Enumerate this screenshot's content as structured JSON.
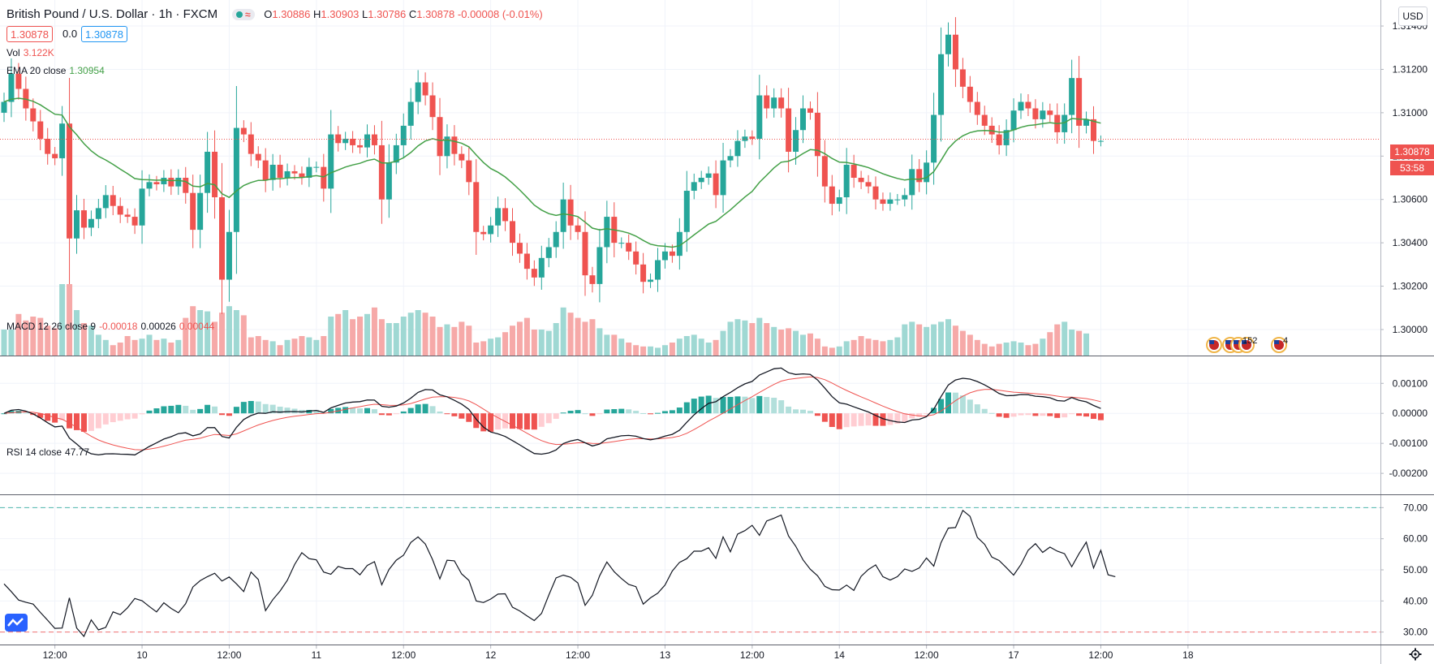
{
  "header": {
    "symbol": "British Pound / U.S. Dollar · 1h · FXCM",
    "open_label": "O",
    "open": "1.30886",
    "high_label": "H",
    "high": "1.30903",
    "low_label": "L",
    "low": "1.30786",
    "close_label": "C",
    "close": "1.30878",
    "change": "-0.00008 (-0.01%)",
    "bid": "1.30878",
    "spread": "0.0",
    "ask": "1.30878",
    "currency": "USD"
  },
  "indicators": {
    "vol_label": "Vol",
    "vol_value": "3.122K",
    "ema_label": "EMA 20 close",
    "ema_value": "1.30954",
    "macd_label": "MACD 12 26 close 9",
    "macd_hist": "-0.00018",
    "macd_line": "0.00026",
    "macd_signal": "0.00044",
    "rsi_label": "RSI 14 close",
    "rsi_value": "47.77"
  },
  "last_price": {
    "price": "1.30878",
    "countdown": "53:58"
  },
  "events": {
    "count_a": "152",
    "count_b": "4"
  },
  "colors": {
    "up": "#26a69a",
    "down": "#ef5350",
    "ema": "#43a047",
    "macd": "#131722",
    "signal": "#ef5350"
  },
  "chart_data": [
    {
      "type": "candlestick",
      "title": "British Pound / U.S. Dollar · 1h · FXCM",
      "x_tick_labels": [
        "12:00",
        "10",
        "12:00",
        "11",
        "12:00",
        "12",
        "12:00",
        "13",
        "12:00",
        "14",
        "12:00",
        "17",
        "12:00",
        "18"
      ],
      "y_ticks": [
        "1.31400",
        "1.31200",
        "1.31000",
        "1.30800",
        "1.30600",
        "1.30400",
        "1.30200",
        "1.30000"
      ],
      "ylim": [
        1.2988,
        1.3152
      ],
      "closes": [
        1.3105,
        1.3118,
        1.3111,
        1.3102,
        1.3096,
        1.3088,
        1.3081,
        1.3079,
        1.3095,
        1.3042,
        1.3055,
        1.3047,
        1.3051,
        1.3056,
        1.3062,
        1.3057,
        1.3053,
        1.3052,
        1.3048,
        1.3065,
        1.3068,
        1.3067,
        1.307,
        1.3066,
        1.307,
        1.3063,
        1.3046,
        1.3063,
        1.3082,
        1.3061,
        1.3023,
        1.3045,
        1.3093,
        1.309,
        1.3081,
        1.3078,
        1.3069,
        1.3076,
        1.307,
        1.3073,
        1.3072,
        1.307,
        1.3075,
        1.3075,
        1.3065,
        1.309,
        1.3086,
        1.3088,
        1.3085,
        1.3084,
        1.309,
        1.3085,
        1.306,
        1.3077,
        1.3085,
        1.3094,
        1.3105,
        1.3114,
        1.3108,
        1.3098,
        1.308,
        1.3089,
        1.3081,
        1.3078,
        1.3068,
        1.3045,
        1.3044,
        1.3048,
        1.3056,
        1.305,
        1.304,
        1.3035,
        1.3028,
        1.3024,
        1.3033,
        1.3038,
        1.3045,
        1.306,
        1.3048,
        1.3045,
        1.3025,
        1.3021,
        1.3038,
        1.3052,
        1.304,
        1.304,
        1.3036,
        1.303,
        1.3022,
        1.3023,
        1.3032,
        1.3036,
        1.3034,
        1.3045,
        1.3064,
        1.3068,
        1.307,
        1.3072,
        1.3062,
        1.3078,
        1.308,
        1.3087,
        1.3089,
        1.3088,
        1.3108,
        1.3102,
        1.3107,
        1.3102,
        1.3082,
        1.3092,
        1.3102,
        1.31,
        1.308,
        1.3066,
        1.3058,
        1.3061,
        1.3076,
        1.307,
        1.3068,
        1.3066,
        1.306,
        1.3058,
        1.306,
        1.306,
        1.3062,
        1.3074,
        1.3068,
        1.3077,
        1.3099,
        1.3127,
        1.3136,
        1.312,
        1.3112,
        1.3105,
        1.3099,
        1.3094,
        1.309,
        1.3085,
        1.3092,
        1.3101,
        1.3105,
        1.3102,
        1.3097,
        1.3101,
        1.3099,
        1.3091,
        1.3099,
        1.3116,
        1.3094,
        1.3097,
        1.3087,
        1.3087
      ]
    },
    {
      "type": "bar",
      "title": "Vol",
      "values": [
        2.0,
        2.0,
        3.2,
        2.7,
        3.0,
        2.9,
        2.3,
        2.1,
        5.5,
        5.5,
        3.5,
        2.5,
        2.3,
        1.6,
        1.2,
        0.8,
        1.0,
        1.5,
        1.2,
        1.3,
        1.6,
        1.2,
        1.3,
        1.0,
        1.2,
        2.9,
        3.8,
        3.5,
        3.4,
        2.6,
        3.3,
        3.8,
        3.5,
        3.1,
        1.4,
        1.5,
        1.2,
        1.1,
        0.8,
        1.2,
        1.3,
        1.5,
        1.4,
        1.2,
        1.5,
        3.0,
        3.2,
        3.5,
        2.8,
        3.0,
        3.2,
        3.7,
        2.8,
        2.5,
        2.5,
        3.0,
        3.3,
        3.5,
        3.3,
        3.0,
        2.2,
        2.4,
        2.2,
        2.6,
        2.3,
        1.0,
        1.1,
        1.3,
        1.4,
        1.8,
        2.3,
        2.6,
        2.9,
        2.0,
        2.0,
        1.9,
        2.5,
        3.7,
        3.3,
        2.9,
        2.6,
        2.8,
        2.1,
        1.6,
        1.6,
        1.3,
        1.0,
        0.8,
        0.7,
        0.7,
        0.6,
        0.8,
        1.0,
        1.3,
        1.5,
        1.6,
        1.3,
        1.0,
        1.2,
        1.9,
        2.6,
        2.8,
        2.7,
        2.5,
        2.9,
        2.5,
        2.2,
        2.0,
        2.1,
        1.9,
        1.6,
        1.7,
        1.3,
        0.7,
        0.6,
        0.7,
        1.1,
        1.2,
        1.5,
        1.3,
        1.2,
        1.1,
        1.2,
        1.4,
        2.4,
        2.6,
        2.4,
        2.2,
        2.4,
        2.6,
        2.8,
        2.3,
        1.9,
        1.6,
        1.2,
        0.9,
        0.7,
        0.9,
        1.0,
        1.1,
        1.0,
        0.8,
        0.9,
        1.3,
        1.8,
        2.4,
        2.6,
        2.0,
        1.9,
        1.7
      ]
    },
    {
      "type": "line",
      "title": "MACD 12 26 close 9",
      "y_ticks": [
        "0.00100",
        "0.00000",
        "-0.00100",
        "-0.00200"
      ],
      "ylim": [
        -0.0027,
        0.0019
      ]
    },
    {
      "type": "line",
      "title": "RSI 14 close",
      "y_ticks": [
        "70.00",
        "60.00",
        "50.00",
        "40.00",
        "30.00"
      ],
      "ylim": [
        26,
        74
      ],
      "bands": [
        30,
        70
      ],
      "values": [
        45.5,
        43.0,
        40.3,
        39.6,
        39.0,
        36.3,
        33.8,
        31.2,
        31.3,
        41.0,
        31.3,
        28.6,
        33.9,
        30.7,
        31.5,
        36.5,
        35.6,
        37.8,
        40.8,
        40.1,
        38.2,
        36.5,
        39.4,
        37.6,
        36.2,
        39.1,
        44.5,
        46.5,
        47.8,
        48.9,
        46.4,
        47.7,
        45.5,
        43.0,
        49.3,
        46.9,
        36.9,
        40.4,
        43.2,
        46.6,
        51.7,
        55.5,
        53.6,
        53.2,
        49.3,
        48.6,
        51.1,
        50.4,
        50.4,
        48.4,
        51.4,
        52.6,
        45.2,
        50.1,
        53.1,
        54.7,
        58.8,
        60.6,
        58.3,
        53.3,
        47.1,
        53.1,
        52.9,
        48.7,
        46.6,
        40.0,
        39.5,
        40.6,
        42.2,
        42.3,
        38.0,
        36.8,
        35.2,
        33.7,
        36.0,
        41.9,
        47.4,
        48.3,
        47.6,
        45.8,
        38.6,
        41.8,
        48.1,
        52.5,
        49.4,
        47.2,
        45.3,
        44.6,
        39.0,
        41.0,
        42.5,
        45.1,
        49.6,
        52.4,
        53.6,
        56.0,
        56.0,
        57.1,
        53.7,
        60.6,
        55.8,
        61.5,
        62.6,
        64.3,
        61.1,
        65.7,
        66.6,
        67.6,
        60.9,
        57.6,
        53.2,
        50.2,
        48.1,
        44.7,
        43.6,
        43.5,
        45.1,
        43.4,
        47.9,
        50.1,
        51.6,
        47.8,
        46.7,
        47.8,
        50.3,
        49.5,
        50.6,
        53.8,
        51.2,
        58.7,
        63.4,
        63.6,
        69.1,
        67.2,
        60.4,
        58.2,
        54.1,
        53.0,
        50.7,
        48.3,
        51.7,
        56.3,
        58.4,
        55.6,
        57.3,
        56.0,
        55.2,
        51.0,
        55.2,
        58.9,
        50.6,
        56.3,
        48.4,
        47.8
      ]
    }
  ]
}
